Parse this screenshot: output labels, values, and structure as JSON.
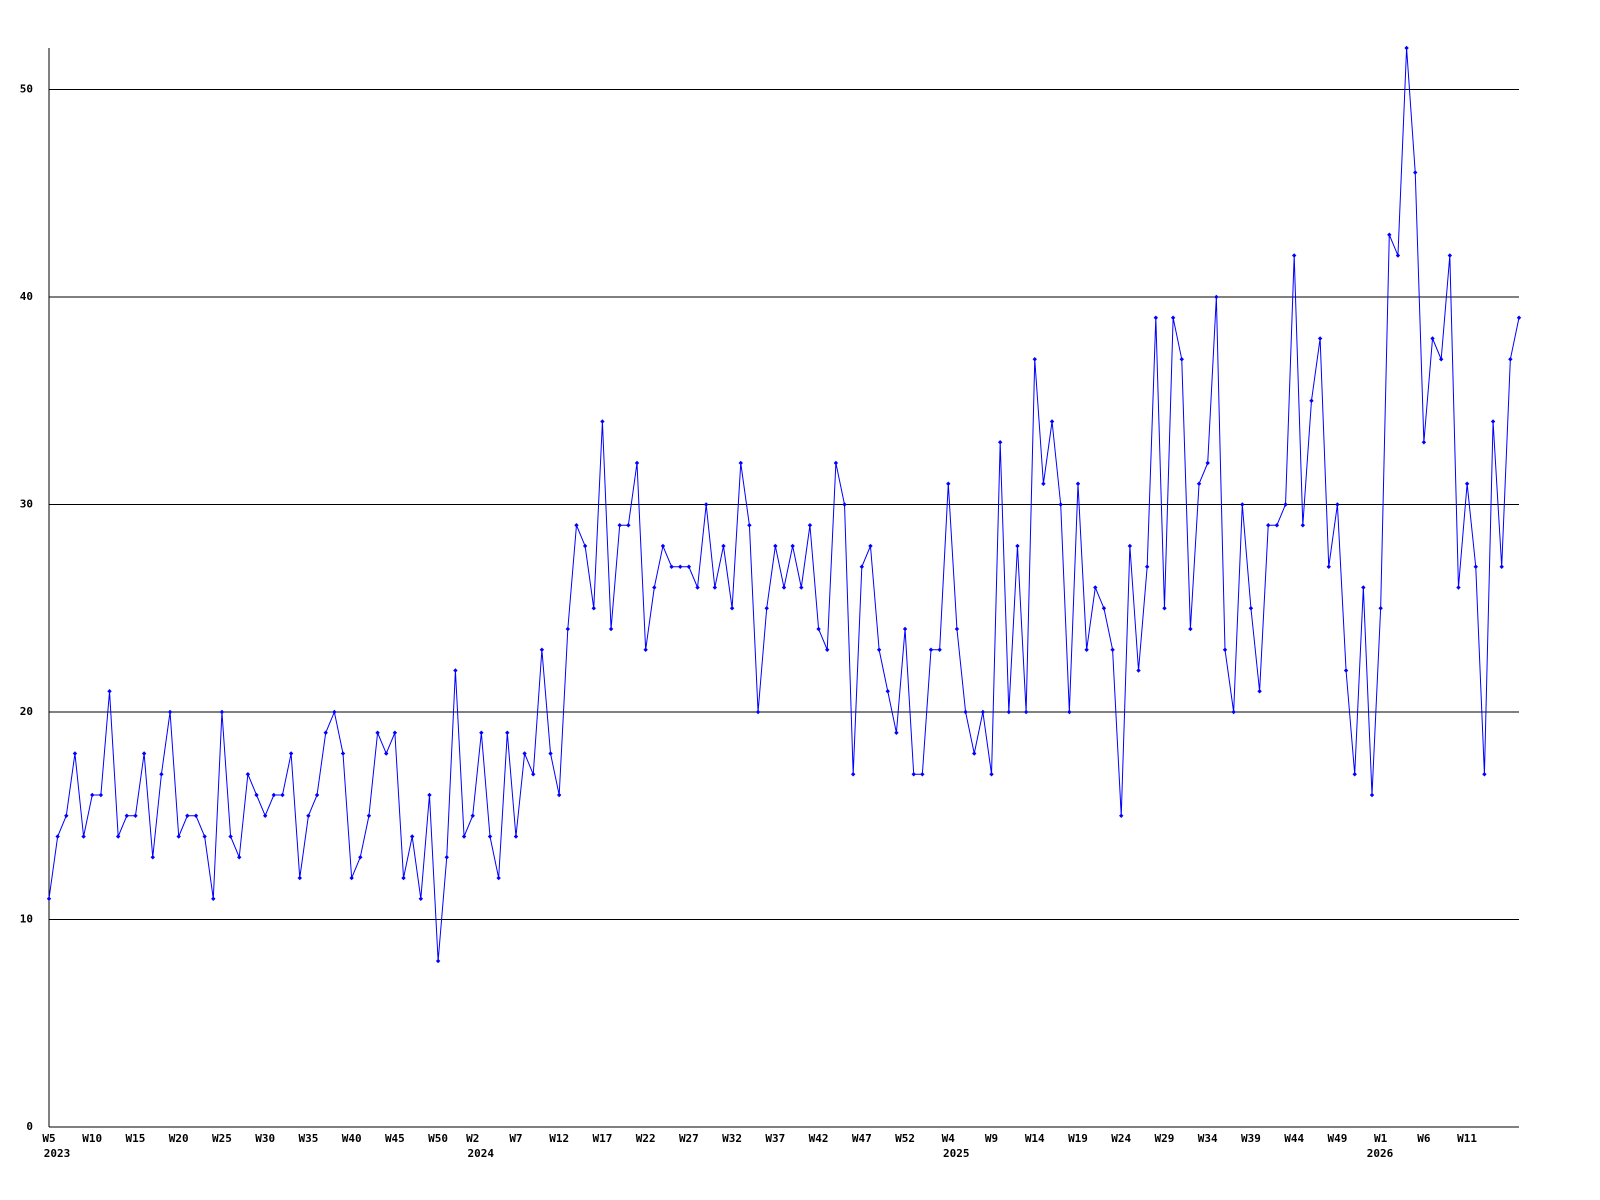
{
  "chart_data": {
    "type": "line",
    "categories": [
      "W5",
      null,
      null,
      null,
      null,
      "W10",
      null,
      null,
      null,
      null,
      "W15",
      null,
      null,
      null,
      null,
      "W20",
      null,
      null,
      null,
      null,
      "W25",
      null,
      null,
      null,
      null,
      "W30",
      null,
      null,
      null,
      null,
      "W35",
      null,
      null,
      null,
      null,
      "W40",
      null,
      null,
      null,
      null,
      "W45",
      null,
      null,
      null,
      null,
      "W50",
      null,
      null,
      null,
      "W2",
      null,
      null,
      null,
      null,
      "W7",
      null,
      null,
      null,
      null,
      "W12",
      null,
      null,
      null,
      null,
      "W17",
      null,
      null,
      null,
      null,
      "W22",
      null,
      null,
      null,
      null,
      "W27",
      null,
      null,
      null,
      null,
      "W32",
      null,
      null,
      null,
      null,
      "W37",
      null,
      null,
      null,
      null,
      "W42",
      null,
      null,
      null,
      null,
      "W47",
      null,
      null,
      null,
      null,
      "W52",
      null,
      null,
      null,
      null,
      "W4",
      null,
      null,
      null,
      null,
      "W9",
      null,
      null,
      null,
      null,
      "W14",
      null,
      null,
      null,
      null,
      "W19",
      null,
      null,
      null,
      null,
      "W24",
      null,
      null,
      null,
      null,
      "W29",
      null,
      null,
      null,
      null,
      "W34",
      null,
      null,
      null,
      null,
      "W39",
      null,
      null,
      null,
      null,
      "W44",
      null,
      null,
      null,
      null,
      "W49",
      null,
      null,
      null,
      null,
      "W1",
      null,
      null,
      null,
      null,
      "W6",
      null,
      null,
      null,
      null,
      "W11",
      null,
      null,
      null,
      null,
      null,
      null
    ],
    "year_labels": [
      "2023",
      null,
      null,
      null,
      null,
      null,
      null,
      null,
      null,
      null,
      null,
      null,
      null,
      null,
      null,
      null,
      null,
      null,
      null,
      null,
      null,
      null,
      null,
      null,
      null,
      null,
      null,
      null,
      null,
      null,
      null,
      null,
      null,
      null,
      null,
      null,
      null,
      null,
      null,
      null,
      null,
      null,
      null,
      null,
      null,
      null,
      null,
      null,
      null,
      "2024",
      null,
      null,
      null,
      null,
      null,
      null,
      null,
      null,
      null,
      null,
      null,
      null,
      null,
      null,
      null,
      null,
      null,
      null,
      null,
      null,
      null,
      null,
      null,
      null,
      null,
      null,
      null,
      null,
      null,
      null,
      null,
      null,
      null,
      null,
      null,
      null,
      null,
      null,
      null,
      null,
      null,
      null,
      null,
      null,
      null,
      null,
      null,
      null,
      null,
      null,
      null,
      null,
      null,
      null,
      "2025",
      null,
      null,
      null,
      null,
      null,
      null,
      null,
      null,
      null,
      null,
      null,
      null,
      null,
      null,
      null,
      null,
      null,
      null,
      null,
      null,
      null,
      null,
      null,
      null,
      null,
      null,
      null,
      null,
      null,
      null,
      null,
      null,
      null,
      null,
      null,
      null,
      null,
      null,
      null,
      null,
      null,
      null,
      null,
      null,
      null,
      null,
      null,
      null,
      "2026",
      null,
      null,
      null,
      null,
      null,
      null,
      null,
      null,
      null,
      null,
      null,
      null,
      null,
      null,
      null,
      null
    ],
    "values": [
      11,
      14,
      15,
      18,
      14,
      16,
      16,
      21,
      14,
      15,
      15,
      18,
      13,
      17,
      20,
      14,
      15,
      15,
      14,
      11,
      20,
      14,
      13,
      17,
      16,
      15,
      16,
      16,
      18,
      12,
      15,
      16,
      19,
      20,
      18,
      12,
      13,
      15,
      19,
      18,
      19,
      12,
      14,
      11,
      16,
      8,
      13,
      22,
      14,
      15,
      19,
      14,
      12,
      19,
      14,
      18,
      17,
      23,
      18,
      16,
      24,
      29,
      28,
      25,
      34,
      24,
      29,
      29,
      32,
      23,
      26,
      28,
      27,
      27,
      27,
      26,
      30,
      26,
      28,
      25,
      32,
      29,
      20,
      25,
      28,
      26,
      28,
      26,
      29,
      24,
      23,
      32,
      30,
      17,
      27,
      28,
      23,
      21,
      19,
      24,
      17,
      17,
      23,
      23,
      31,
      24,
      20,
      18,
      20,
      17,
      33,
      20,
      28,
      20,
      37,
      31,
      34,
      30,
      20,
      31,
      23,
      26,
      25,
      23,
      15,
      28,
      22,
      27,
      39,
      25,
      39,
      37,
      24,
      31,
      32,
      40,
      23,
      20,
      30,
      25,
      21,
      29,
      29,
      30,
      42,
      29,
      35,
      38,
      27,
      30,
      22,
      17,
      26,
      16,
      25,
      43,
      42,
      52,
      46,
      33,
      38,
      37,
      42,
      26,
      31,
      27,
      17,
      34,
      27,
      37,
      39
    ],
    "color": "#0000ff",
    "ylim": [
      0,
      52
    ],
    "yticks": [
      0,
      10,
      20,
      30,
      40,
      50
    ],
    "grid": true
  }
}
